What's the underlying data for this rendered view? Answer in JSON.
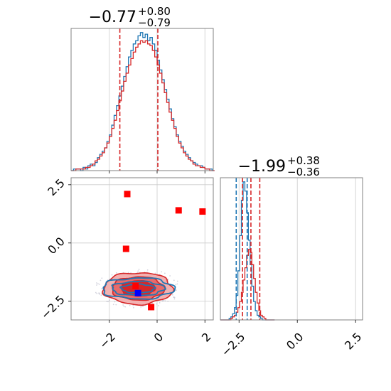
{
  "colors": {
    "red": "#d62728",
    "blue": "#1f77b4",
    "grid": "#cccccc",
    "red_fill_outer": "#f2b1b1",
    "red_fill_mid": "#e86a6a",
    "red_fill_inner": "#d62728",
    "marker_red": "#ff0000",
    "marker_blue": "#0000ff",
    "frame": "#808080"
  },
  "chart_data": [
    {
      "type": "histogram",
      "panel": "top-left",
      "title": {
        "median": "−0.77",
        "plus": "+0.80",
        "minus": "−0.79"
      },
      "x_range": [
        -3.6,
        2.35
      ],
      "x_ticks": [
        -2,
        0,
        2
      ],
      "grid": true,
      "quantile_lines_red": [
        -1.56,
        0.03
      ],
      "series": [
        {
          "name": "",
          "color": "blue",
          "bin_start": -3.6,
          "bin_width": 0.1,
          "values": [
            0,
            1,
            1,
            1,
            0,
            2,
            1,
            3,
            4,
            3,
            5,
            8,
            10,
            12,
            14,
            18,
            22,
            28,
            34,
            40,
            46,
            52,
            58,
            64,
            70,
            74,
            78,
            80,
            83,
            85,
            82,
            84,
            80,
            82,
            78,
            74,
            68,
            62,
            56,
            50,
            44,
            38,
            32,
            27,
            22,
            18,
            15,
            12,
            10,
            8,
            6,
            5,
            4,
            3,
            3,
            2,
            1,
            1,
            1,
            0
          ]
        },
        {
          "name": "",
          "color": "red",
          "bin_start": -3.6,
          "bin_width": 0.1,
          "values": [
            0,
            0,
            1,
            1,
            1,
            1,
            2,
            2,
            3,
            4,
            6,
            7,
            9,
            11,
            14,
            17,
            21,
            26,
            31,
            37,
            43,
            49,
            55,
            60,
            65,
            69,
            73,
            76,
            78,
            80,
            79,
            80,
            78,
            77,
            74,
            70,
            65,
            60,
            54,
            48,
            42,
            36,
            31,
            26,
            21,
            17,
            14,
            11,
            9,
            7,
            6,
            4,
            3,
            3,
            2,
            2,
            1,
            1,
            0,
            0
          ]
        }
      ]
    },
    {
      "type": "histogram",
      "panel": "bottom-right",
      "title": {
        "median": "−1.99",
        "plus": "+0.38",
        "minus": "−0.36"
      },
      "x_range": [
        -3.3,
        2.8
      ],
      "x_ticks": [
        -2.5,
        0.0,
        2.5
      ],
      "x_tick_labels": [
        "−2.5",
        "0.0",
        "2.5"
      ],
      "grid": true,
      "quantile_lines_red": [
        -2.35,
        -1.99,
        -1.61
      ],
      "quantile_lines_blue": [
        -2.62,
        -2.15
      ],
      "series": [
        {
          "name": "",
          "color": "blue",
          "bin_start": -3.3,
          "bin_width": 0.075,
          "values": [
            0,
            0,
            0,
            0,
            0,
            1,
            2,
            4,
            8,
            16,
            32,
            55,
            78,
            90,
            84,
            70,
            52,
            36,
            22,
            12,
            6,
            3,
            2,
            1,
            0,
            0,
            0,
            0,
            0,
            0,
            0
          ]
        },
        {
          "name": "",
          "color": "red",
          "bin_start": -3.3,
          "bin_width": 0.075,
          "values": [
            0,
            0,
            0,
            0,
            0,
            0,
            1,
            2,
            3,
            5,
            8,
            12,
            18,
            26,
            34,
            42,
            46,
            44,
            36,
            27,
            18,
            11,
            6,
            3,
            2,
            1,
            0,
            0,
            0,
            0,
            0
          ]
        }
      ]
    },
    {
      "type": "scatter_contour",
      "panel": "bottom-left",
      "x_range": [
        -3.6,
        2.35
      ],
      "y_range": [
        -3.3,
        2.8
      ],
      "x_ticks": [
        -2,
        0,
        2
      ],
      "y_ticks": [
        2.5,
        0.0,
        -2.5
      ],
      "y_tick_labels": [
        "2.5",
        "0.0",
        "−2.5"
      ],
      "grid": true,
      "contour_center": {
        "x": -0.8,
        "y": -1.95
      },
      "contours_red": [
        {
          "rx": 1.45,
          "ry": 0.68
        },
        {
          "rx": 1.1,
          "ry": 0.5
        },
        {
          "rx": 0.7,
          "ry": 0.33
        }
      ],
      "contours_blue": [
        {
          "rx": 1.5,
          "ry": 0.45
        },
        {
          "rx": 1.1,
          "ry": 0.3
        },
        {
          "rx": 0.7,
          "ry": 0.18
        }
      ],
      "markers_red": [
        {
          "x": -1.25,
          "y": 2.1
        },
        {
          "x": 0.9,
          "y": 1.4
        },
        {
          "x": 1.9,
          "y": 1.35
        },
        {
          "x": -1.3,
          "y": -0.25
        },
        {
          "x": -0.9,
          "y": -1.85
        },
        {
          "x": -0.25,
          "y": -2.75
        }
      ],
      "markers_blue": [
        {
          "x": -0.8,
          "y": -2.15
        }
      ]
    }
  ]
}
